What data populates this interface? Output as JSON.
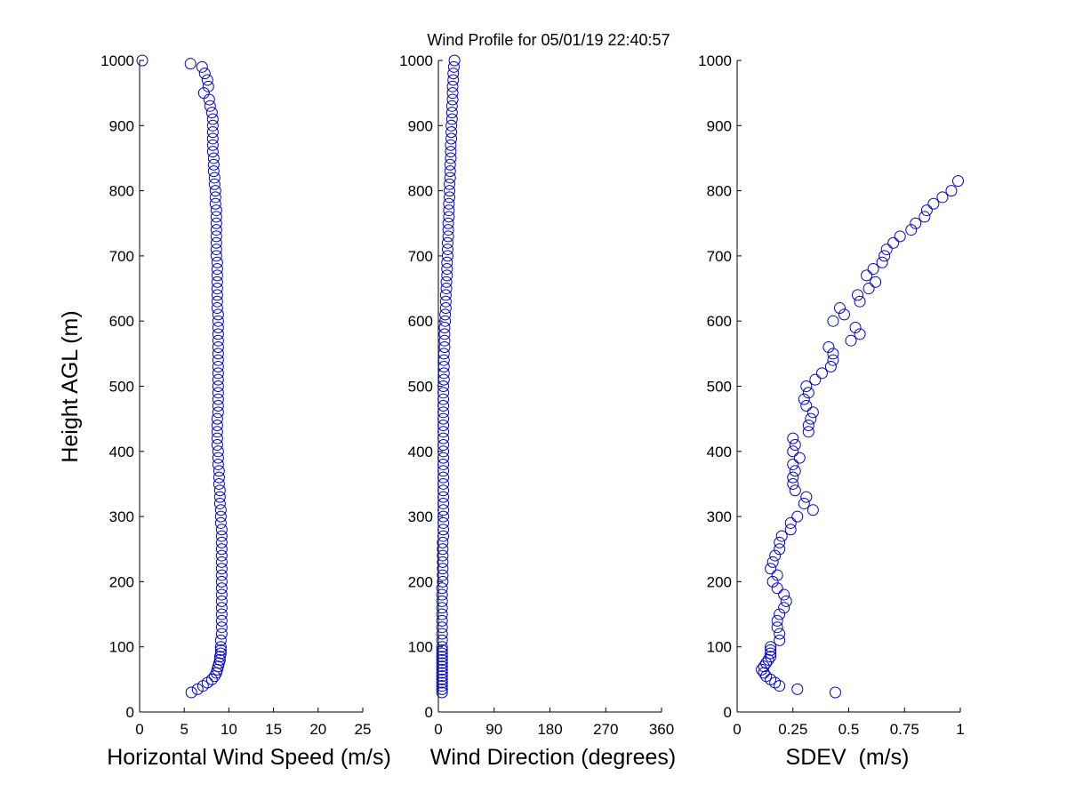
{
  "title": "Wind Profile for  05/01/19 22:40:57",
  "colors": {
    "marker": "#0000cc",
    "axis": "#000000",
    "background": "#ffffff"
  },
  "chart_data": [
    {
      "type": "scatter",
      "name": "speed",
      "xlabel": "Horizontal Wind Speed (m/s)",
      "ylabel": "Height AGL (m)",
      "xlim": [
        0,
        25
      ],
      "ylim": [
        0,
        1000
      ],
      "xticks": [
        "0",
        "5",
        "10",
        "15",
        "20",
        "25"
      ],
      "yticks": [
        "0",
        "100",
        "200",
        "300",
        "400",
        "500",
        "600",
        "700",
        "800",
        "900",
        "1000"
      ],
      "grid": false,
      "points": [
        [
          5.8,
          30
        ],
        [
          6.5,
          35
        ],
        [
          7.1,
          40
        ],
        [
          7.6,
          45
        ],
        [
          8.1,
          50
        ],
        [
          8.4,
          55
        ],
        [
          8.6,
          60
        ],
        [
          8.7,
          65
        ],
        [
          8.8,
          70
        ],
        [
          8.9,
          75
        ],
        [
          9.0,
          80
        ],
        [
          9.0,
          85
        ],
        [
          9.1,
          90
        ],
        [
          9.1,
          95
        ],
        [
          9.1,
          100
        ],
        [
          9.1,
          110
        ],
        [
          9.2,
          120
        ],
        [
          9.2,
          130
        ],
        [
          9.2,
          140
        ],
        [
          9.2,
          150
        ],
        [
          9.2,
          160
        ],
        [
          9.2,
          170
        ],
        [
          9.2,
          180
        ],
        [
          9.2,
          190
        ],
        [
          9.2,
          200
        ],
        [
          9.2,
          210
        ],
        [
          9.2,
          220
        ],
        [
          9.2,
          230
        ],
        [
          9.2,
          240
        ],
        [
          9.2,
          250
        ],
        [
          9.2,
          260
        ],
        [
          9.2,
          270
        ],
        [
          9.2,
          280
        ],
        [
          9.1,
          290
        ],
        [
          9.1,
          300
        ],
        [
          9.1,
          310
        ],
        [
          9.0,
          320
        ],
        [
          9.0,
          330
        ],
        [
          9.0,
          340
        ],
        [
          8.9,
          350
        ],
        [
          8.9,
          360
        ],
        [
          8.9,
          370
        ],
        [
          8.8,
          380
        ],
        [
          8.8,
          390
        ],
        [
          8.8,
          400
        ],
        [
          8.7,
          410
        ],
        [
          8.7,
          420
        ],
        [
          8.7,
          430
        ],
        [
          8.7,
          440
        ],
        [
          8.7,
          450
        ],
        [
          8.8,
          460
        ],
        [
          8.8,
          470
        ],
        [
          8.8,
          480
        ],
        [
          8.8,
          490
        ],
        [
          8.8,
          500
        ],
        [
          8.8,
          510
        ],
        [
          8.8,
          520
        ],
        [
          8.8,
          530
        ],
        [
          8.8,
          540
        ],
        [
          8.8,
          550
        ],
        [
          8.8,
          560
        ],
        [
          8.8,
          570
        ],
        [
          8.8,
          580
        ],
        [
          8.8,
          590
        ],
        [
          8.8,
          600
        ],
        [
          8.8,
          610
        ],
        [
          8.7,
          620
        ],
        [
          8.7,
          630
        ],
        [
          8.7,
          640
        ],
        [
          8.7,
          650
        ],
        [
          8.7,
          660
        ],
        [
          8.7,
          670
        ],
        [
          8.7,
          680
        ],
        [
          8.7,
          690
        ],
        [
          8.6,
          700
        ],
        [
          8.6,
          710
        ],
        [
          8.6,
          720
        ],
        [
          8.6,
          730
        ],
        [
          8.6,
          740
        ],
        [
          8.6,
          750
        ],
        [
          8.6,
          760
        ],
        [
          8.6,
          770
        ],
        [
          8.5,
          780
        ],
        [
          8.5,
          790
        ],
        [
          8.5,
          800
        ],
        [
          8.4,
          810
        ],
        [
          8.4,
          820
        ],
        [
          8.3,
          830
        ],
        [
          8.3,
          840
        ],
        [
          8.3,
          850
        ],
        [
          8.2,
          860
        ],
        [
          8.2,
          870
        ],
        [
          8.2,
          880
        ],
        [
          8.2,
          890
        ],
        [
          8.2,
          900
        ],
        [
          8.2,
          910
        ],
        [
          8.1,
          920
        ],
        [
          7.9,
          930
        ],
        [
          7.8,
          940
        ],
        [
          7.2,
          950
        ],
        [
          7.7,
          960
        ],
        [
          7.6,
          970
        ],
        [
          7.3,
          980
        ],
        [
          7.0,
          990
        ],
        [
          5.7,
          995
        ],
        [
          0.3,
          1000
        ]
      ]
    },
    {
      "type": "scatter",
      "name": "direction",
      "xlabel": "Wind Direction (degrees)",
      "xlim": [
        0,
        360
      ],
      "ylim": [
        0,
        1000
      ],
      "xticks": [
        "0",
        "90",
        "180",
        "270",
        "360"
      ],
      "yticks": [
        "0",
        "100",
        "200",
        "300",
        "400",
        "500",
        "600",
        "700",
        "800",
        "900",
        "1000"
      ],
      "grid": false,
      "points": [
        [
          6,
          30
        ],
        [
          6,
          35
        ],
        [
          6,
          40
        ],
        [
          6,
          45
        ],
        [
          6,
          50
        ],
        [
          6,
          55
        ],
        [
          6,
          60
        ],
        [
          6,
          65
        ],
        [
          6,
          70
        ],
        [
          6,
          75
        ],
        [
          6,
          80
        ],
        [
          6,
          85
        ],
        [
          6,
          90
        ],
        [
          6,
          95
        ],
        [
          6,
          100
        ],
        [
          6,
          110
        ],
        [
          6,
          120
        ],
        [
          6,
          130
        ],
        [
          6,
          140
        ],
        [
          6,
          150
        ],
        [
          6,
          160
        ],
        [
          6,
          170
        ],
        [
          6,
          180
        ],
        [
          6,
          190
        ],
        [
          7,
          200
        ],
        [
          7,
          210
        ],
        [
          7,
          220
        ],
        [
          7,
          230
        ],
        [
          7,
          240
        ],
        [
          7,
          250
        ],
        [
          7,
          260
        ],
        [
          8,
          270
        ],
        [
          8,
          280
        ],
        [
          8,
          290
        ],
        [
          8,
          300
        ],
        [
          8,
          310
        ],
        [
          8,
          320
        ],
        [
          8,
          330
        ],
        [
          8,
          340
        ],
        [
          8,
          350
        ],
        [
          8,
          360
        ],
        [
          8,
          370
        ],
        [
          8,
          380
        ],
        [
          8,
          390
        ],
        [
          8,
          400
        ],
        [
          8,
          410
        ],
        [
          8,
          420
        ],
        [
          8,
          430
        ],
        [
          8,
          440
        ],
        [
          8,
          450
        ],
        [
          8,
          460
        ],
        [
          8,
          470
        ],
        [
          8,
          480
        ],
        [
          8,
          490
        ],
        [
          8,
          500
        ],
        [
          9,
          510
        ],
        [
          9,
          520
        ],
        [
          9,
          530
        ],
        [
          9,
          540
        ],
        [
          9,
          550
        ],
        [
          10,
          560
        ],
        [
          10,
          570
        ],
        [
          10,
          580
        ],
        [
          10,
          590
        ],
        [
          11,
          600
        ],
        [
          11,
          610
        ],
        [
          12,
          620
        ],
        [
          12,
          630
        ],
        [
          12,
          640
        ],
        [
          13,
          650
        ],
        [
          13,
          660
        ],
        [
          14,
          670
        ],
        [
          14,
          680
        ],
        [
          14,
          690
        ],
        [
          15,
          700
        ],
        [
          15,
          710
        ],
        [
          15,
          720
        ],
        [
          16,
          730
        ],
        [
          16,
          740
        ],
        [
          16,
          750
        ],
        [
          17,
          760
        ],
        [
          17,
          770
        ],
        [
          17,
          780
        ],
        [
          18,
          790
        ],
        [
          18,
          800
        ],
        [
          18,
          810
        ],
        [
          19,
          820
        ],
        [
          19,
          830
        ],
        [
          19,
          840
        ],
        [
          20,
          850
        ],
        [
          20,
          860
        ],
        [
          20,
          870
        ],
        [
          21,
          880
        ],
        [
          21,
          890
        ],
        [
          21,
          900
        ],
        [
          22,
          910
        ],
        [
          22,
          920
        ],
        [
          22,
          930
        ],
        [
          23,
          940
        ],
        [
          23,
          950
        ],
        [
          23,
          960
        ],
        [
          24,
          970
        ],
        [
          24,
          980
        ],
        [
          25,
          990
        ],
        [
          26,
          1000
        ]
      ]
    },
    {
      "type": "scatter",
      "name": "sdev",
      "xlabel": "SDEV  (m/s)",
      "xlim": [
        0,
        1
      ],
      "ylim": [
        0,
        1000
      ],
      "xticks": [
        "0",
        "0.25",
        "0.5",
        "0.75",
        "1"
      ],
      "yticks": [
        "0",
        "100",
        "200",
        "300",
        "400",
        "500",
        "600",
        "700",
        "800",
        "900",
        "1000"
      ],
      "grid": false,
      "points": [
        [
          0.44,
          30
        ],
        [
          0.27,
          35
        ],
        [
          0.19,
          40
        ],
        [
          0.17,
          45
        ],
        [
          0.15,
          50
        ],
        [
          0.13,
          55
        ],
        [
          0.12,
          60
        ],
        [
          0.11,
          65
        ],
        [
          0.12,
          70
        ],
        [
          0.13,
          75
        ],
        [
          0.14,
          80
        ],
        [
          0.15,
          85
        ],
        [
          0.15,
          90
        ],
        [
          0.15,
          95
        ],
        [
          0.15,
          100
        ],
        [
          0.19,
          110
        ],
        [
          0.19,
          120
        ],
        [
          0.18,
          130
        ],
        [
          0.18,
          140
        ],
        [
          0.19,
          150
        ],
        [
          0.21,
          160
        ],
        [
          0.22,
          170
        ],
        [
          0.21,
          180
        ],
        [
          0.18,
          190
        ],
        [
          0.16,
          200
        ],
        [
          0.18,
          210
        ],
        [
          0.15,
          220
        ],
        [
          0.16,
          230
        ],
        [
          0.17,
          240
        ],
        [
          0.19,
          250
        ],
        [
          0.19,
          260
        ],
        [
          0.2,
          270
        ],
        [
          0.24,
          280
        ],
        [
          0.24,
          290
        ],
        [
          0.27,
          300
        ],
        [
          0.34,
          310
        ],
        [
          0.3,
          320
        ],
        [
          0.31,
          330
        ],
        [
          0.26,
          340
        ],
        [
          0.25,
          350
        ],
        [
          0.25,
          360
        ],
        [
          0.26,
          370
        ],
        [
          0.25,
          380
        ],
        [
          0.28,
          390
        ],
        [
          0.25,
          400
        ],
        [
          0.26,
          410
        ],
        [
          0.25,
          420
        ],
        [
          0.32,
          430
        ],
        [
          0.32,
          440
        ],
        [
          0.33,
          450
        ],
        [
          0.34,
          460
        ],
        [
          0.31,
          470
        ],
        [
          0.3,
          480
        ],
        [
          0.32,
          490
        ],
        [
          0.31,
          500
        ],
        [
          0.35,
          510
        ],
        [
          0.38,
          520
        ],
        [
          0.42,
          530
        ],
        [
          0.43,
          540
        ],
        [
          0.43,
          550
        ],
        [
          0.41,
          560
        ],
        [
          0.51,
          570
        ],
        [
          0.55,
          580
        ],
        [
          0.53,
          590
        ],
        [
          0.43,
          600
        ],
        [
          0.48,
          610
        ],
        [
          0.46,
          620
        ],
        [
          0.55,
          630
        ],
        [
          0.54,
          640
        ],
        [
          0.59,
          650
        ],
        [
          0.62,
          660
        ],
        [
          0.58,
          670
        ],
        [
          0.61,
          680
        ],
        [
          0.65,
          690
        ],
        [
          0.66,
          700
        ],
        [
          0.67,
          710
        ],
        [
          0.7,
          720
        ],
        [
          0.73,
          730
        ],
        [
          0.78,
          740
        ],
        [
          0.8,
          750
        ],
        [
          0.84,
          760
        ],
        [
          0.85,
          770
        ],
        [
          0.88,
          780
        ],
        [
          0.92,
          790
        ],
        [
          0.96,
          800
        ],
        [
          0.99,
          815
        ]
      ]
    }
  ]
}
